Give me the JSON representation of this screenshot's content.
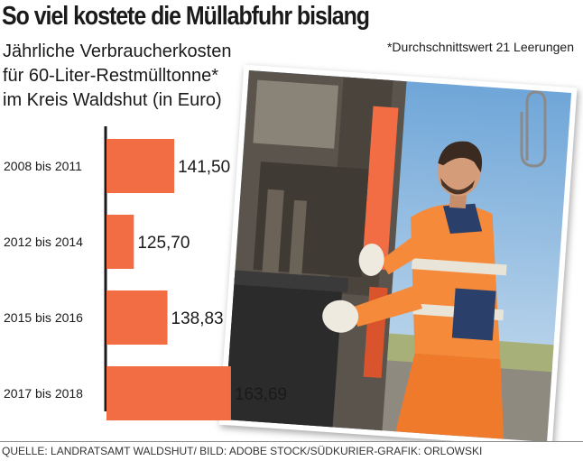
{
  "title": "So viel kostete die Müllabfuhr bislang",
  "subtitle_lines": [
    "Jährliche Verbraucherkosten",
    "für 60-Liter-Restmülltonne*",
    "im Kreis Waldshut (in Euro)"
  ],
  "footnote": "*Durchschnittswert 21 Leerungen",
  "source": "QUELLE: LANDRATSAMT WALDSHUT/ BILD: ADOBE STOCK/SÜDKURIER-GRAFIK: ORLOWSKI",
  "colors": {
    "bar": "#f26c44",
    "axis": "#1a1a1a"
  },
  "chart_data": {
    "type": "bar",
    "orientation": "horizontal",
    "categories": [
      "2008 bis 2011",
      "2012 bis 2014",
      "2015 bis 2016",
      "2017 bis 2018"
    ],
    "values": [
      141.5,
      125.7,
      138.83,
      163.69
    ],
    "value_labels": [
      "141,50",
      "125,70",
      "138,83",
      "163,69"
    ],
    "xlim": [
      115,
      175
    ]
  }
}
